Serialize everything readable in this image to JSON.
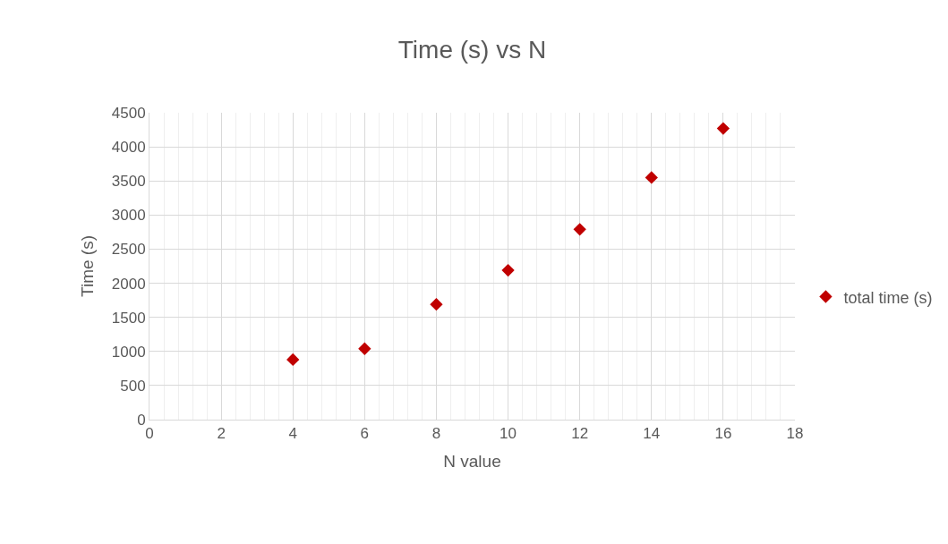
{
  "chart_data": {
    "type": "scatter",
    "title": "Time (s) vs N",
    "xlabel": "N value",
    "ylabel": "Time (s)",
    "x": [
      4,
      6,
      8,
      10,
      12,
      14,
      16
    ],
    "series": [
      {
        "name": "total time (s)",
        "color": "#c00000",
        "values": [
          880,
          1040,
          1690,
          2190,
          2790,
          3550,
          4270
        ]
      }
    ],
    "xlim": [
      0,
      18
    ],
    "xticks": [
      0,
      2,
      4,
      6,
      8,
      10,
      12,
      14,
      16,
      18
    ],
    "ylim": [
      0,
      4500
    ],
    "yticks": [
      0,
      500,
      1000,
      1500,
      2000,
      2500,
      3000,
      3500,
      4000,
      4500
    ],
    "grid": true,
    "legend": "right",
    "marker": "diamond"
  }
}
